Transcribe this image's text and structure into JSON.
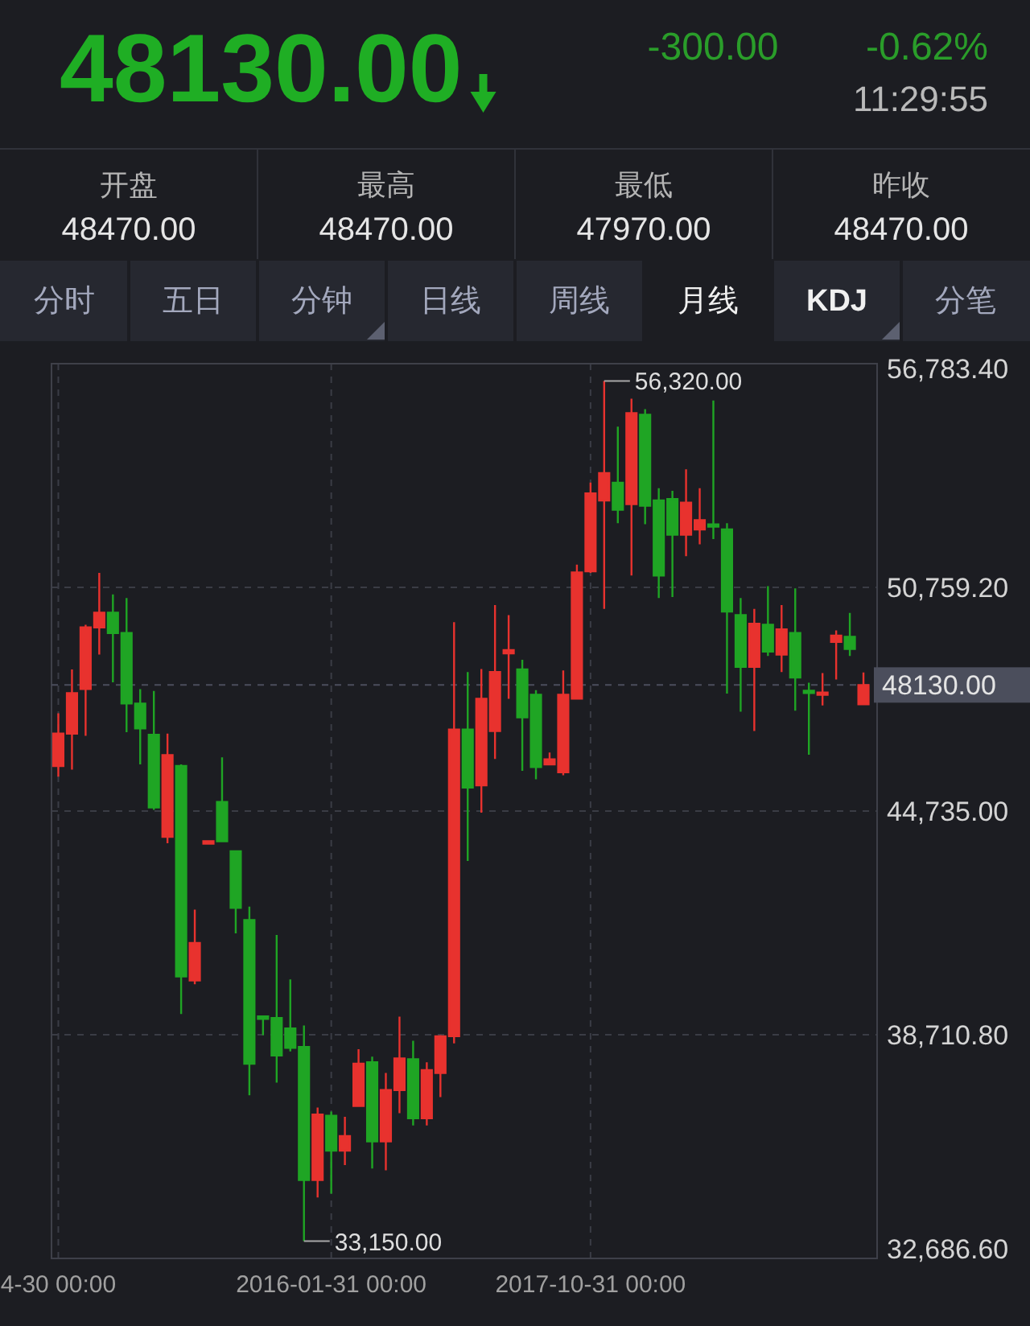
{
  "chart_data": [
    {
      "type": "other",
      "title": "48130.00",
      "annotations": [
        "-300.00",
        "-0.62%",
        "11:29:55",
        "开盘",
        "48470.00",
        "最高",
        "48470.00",
        "最低",
        "47970.00",
        "昨收",
        "48470.00",
        "分时",
        "五日",
        "分钟",
        "日线",
        "周线",
        "月线",
        "KDJ",
        "分笔"
      ]
    },
    {
      "type": "candlestick",
      "categories": [
        "4-30 00:00",
        null,
        null,
        null,
        null,
        null,
        null,
        null,
        null,
        null,
        null,
        null,
        null,
        null,
        null,
        null,
        null,
        null,
        null,
        null,
        "2016-01-31 00:00",
        null,
        null,
        null,
        null,
        null,
        null,
        null,
        null,
        null,
        null,
        null,
        null,
        null,
        null,
        null,
        null,
        null,
        null,
        "2017-10-31 00:00",
        null,
        null,
        null,
        null,
        null,
        null,
        null,
        null,
        null,
        null,
        null,
        null,
        null,
        null,
        null,
        null,
        null,
        null,
        null,
        null
      ],
      "ohlc": [
        [
          45950,
          47370,
          45660,
          46820
        ],
        [
          46820,
          48550,
          45850,
          47910
        ],
        [
          48020,
          49750,
          46760,
          49680
        ],
        [
          49680,
          51150,
          48950,
          50080
        ],
        [
          50080,
          50570,
          48200,
          49530
        ],
        [
          49530,
          50470,
          46860,
          47630
        ],
        [
          47630,
          48020,
          45990,
          46960
        ],
        [
          46790,
          47970,
          44770,
          44830
        ],
        [
          44040,
          46820,
          43870,
          46240
        ],
        [
          45950,
          45990,
          39270,
          40280
        ],
        [
          40170,
          42080,
          40070,
          41180
        ],
        [
          43870,
          43930,
          43850,
          43910
        ],
        [
          44980,
          46180,
          43920,
          43920
        ],
        [
          43650,
          43680,
          41440,
          42130
        ],
        [
          41800,
          42160,
          37080,
          37930
        ],
        [
          39170,
          39170,
          38700,
          39170
        ],
        [
          39160,
          41400,
          37420,
          38150
        ],
        [
          38880,
          40200,
          38260,
          38360
        ],
        [
          38380,
          38960,
          33150,
          34800
        ],
        [
          34800,
          36750,
          34330,
          36560
        ],
        [
          36530,
          36640,
          34430,
          35590
        ],
        [
          35590,
          36500,
          35200,
          35980
        ],
        [
          36790,
          38320,
          36790,
          37930
        ],
        [
          37970,
          38120,
          35110,
          35840
        ],
        [
          35840,
          37680,
          35060,
          37220
        ],
        [
          37220,
          39200,
          36600,
          38070
        ],
        [
          38050,
          38550,
          36270,
          36460
        ],
        [
          36460,
          37970,
          36270,
          37760
        ],
        [
          37680,
          38700,
          37030,
          38670
        ],
        [
          38670,
          49820,
          38480,
          46930
        ],
        [
          46930,
          48480,
          43390,
          45370
        ],
        [
          45430,
          48560,
          44690,
          47760
        ],
        [
          46890,
          50280,
          46140,
          48480
        ],
        [
          48980,
          50010,
          47760,
          49070
        ],
        [
          48550,
          48810,
          45820,
          47260
        ],
        [
          47870,
          47990,
          45590,
          45920
        ],
        [
          45990,
          46310,
          45990,
          46130
        ],
        [
          45780,
          48520,
          45700,
          47870
        ],
        [
          47760,
          51370,
          47760,
          51160
        ],
        [
          51190,
          53580,
          51150,
          53290
        ],
        [
          53100,
          56320,
          50180,
          53840
        ],
        [
          53580,
          55090,
          52490,
          52850
        ],
        [
          53000,
          55840,
          51080,
          55450
        ],
        [
          55410,
          55560,
          52460,
          52960
        ],
        [
          53100,
          53430,
          50470,
          51080
        ],
        [
          53140,
          53360,
          50500,
          52180
        ],
        [
          52180,
          53940,
          51600,
          53040
        ],
        [
          52320,
          53430,
          51920,
          52570
        ],
        [
          52450,
          55790,
          52060,
          52400
        ],
        [
          52320,
          52490,
          47900,
          50110
        ],
        [
          50010,
          50470,
          47410,
          48620
        ],
        [
          48620,
          50180,
          46890,
          49780
        ],
        [
          49750,
          50790,
          48910,
          49030
        ],
        [
          48950,
          50280,
          48480,
          49630
        ],
        [
          49530,
          50730,
          47440,
          48330
        ],
        [
          47970,
          48190,
          46250,
          47920
        ],
        [
          47870,
          48450,
          47580,
          47920
        ],
        [
          49290,
          49600,
          48280,
          49460
        ],
        [
          49430,
          50070,
          48910,
          49100
        ],
        [
          47610,
          48470,
          47610,
          48130
        ]
      ],
      "colors": [
        "#e8322e",
        "#e8322e",
        "#e8322e",
        "#e8322e",
        "#1fa524",
        "#1fa524",
        "#1fa524",
        "#1fa524",
        "#e8322e",
        "#1fa524",
        "#e8322e",
        "#e8322e",
        "#1fa524",
        "#1fa524",
        "#1fa524",
        "#1fa524",
        "#1fa524",
        "#1fa524",
        "#1fa524",
        "#e8322e",
        "#1fa524",
        "#e8322e",
        "#e8322e",
        "#1fa524",
        "#e8322e",
        "#e8322e",
        "#1fa524",
        "#e8322e",
        "#e8322e",
        "#e8322e",
        "#1fa524",
        "#e8322e",
        "#e8322e",
        "#e8322e",
        "#1fa524",
        "#1fa524",
        "#e8322e",
        "#e8322e",
        "#e8322e",
        "#e8322e",
        "#e8322e",
        "#1fa524",
        "#e8322e",
        "#1fa524",
        "#1fa524",
        "#1fa524",
        "#e8322e",
        "#e8322e",
        "#1fa524",
        "#1fa524",
        "#1fa524",
        "#e8322e",
        "#1fa524",
        "#e8322e",
        "#1fa524",
        "#1fa524",
        "#e8322e",
        "#e8322e",
        "#1fa524",
        "#e8322e"
      ],
      "ylim": [
        32686.6,
        56783.4
      ],
      "yticks": [
        {
          "value": 32686.6,
          "label": "32,686.60"
        },
        {
          "value": 38710.8,
          "label": "38,710.80"
        },
        {
          "value": 44735,
          "label": "44,735.00"
        },
        {
          "value": 50759.2,
          "label": "50,759.20"
        },
        {
          "value": 56783.4,
          "label": "56,783.40"
        }
      ],
      "grid": true,
      "ref_lines": [
        {
          "axis": "y",
          "value": 48130,
          "label": "48130.00",
          "color": "#4b4e5c",
          "line_style": "dashed"
        }
      ],
      "annotations": [
        "56,320.00",
        "33,150.00"
      ]
    }
  ]
}
